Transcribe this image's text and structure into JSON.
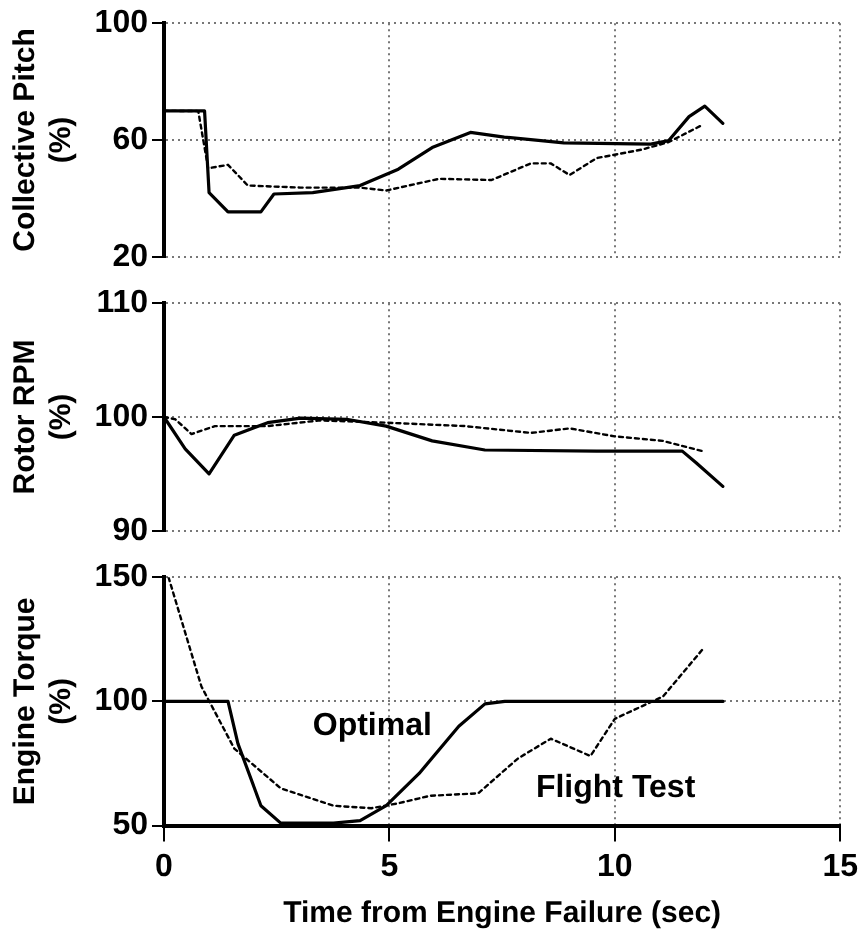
{
  "chart_data": [
    {
      "type": "line",
      "ylabel": "Collective Pitch (%)",
      "xlim": [
        0,
        15
      ],
      "xticks": [
        0,
        5,
        10,
        15
      ],
      "ylim": [
        20,
        100
      ],
      "yticks": [
        20,
        60,
        100
      ],
      "grid": true,
      "tick_labels": "y",
      "marker": "none",
      "series": [
        {
          "color": "#000000",
          "line_style": "solid",
          "x": [
            0,
            0.9,
            1.0,
            1.42,
            2.15,
            2.44,
            3.3,
            4.35,
            5.2,
            5.95,
            6.8,
            7.55,
            8.87,
            10.8,
            11.2,
            11.65,
            12.0,
            12.4
          ],
          "values": [
            70,
            70,
            42,
            35.4,
            35.4,
            41.5,
            42,
            44.4,
            50,
            57.4,
            62.6,
            61,
            59,
            58.6,
            59.8,
            68,
            71.6,
            65.7
          ]
        },
        {
          "color": "#000000",
          "line_style": "dotted",
          "x": [
            0,
            0.76,
            0.98,
            1.42,
            1.86,
            3.03,
            4.35,
            4.93,
            6.1,
            7.27,
            8.14,
            8.58,
            9.0,
            9.6,
            10.6,
            11.2,
            11.95
          ],
          "values": [
            70,
            69.9,
            50.3,
            51.5,
            44.4,
            43.7,
            43.7,
            42.7,
            46.7,
            46.3,
            52,
            52,
            48,
            53.8,
            56.7,
            59.3,
            65.2
          ]
        }
      ]
    },
    {
      "type": "line",
      "ylabel": "Rotor RPM (%)",
      "xlim": [
        0,
        15
      ],
      "xticks": [
        0,
        5,
        10,
        15
      ],
      "ylim": [
        90,
        110
      ],
      "yticks": [
        90,
        100,
        110
      ],
      "grid": true,
      "tick_labels": "y",
      "marker": "none",
      "series": [
        {
          "color": "#000000",
          "line_style": "solid",
          "x": [
            0,
            0.47,
            1.0,
            1.56,
            2.3,
            3.03,
            4.05,
            4.93,
            5.95,
            7.12,
            9.6,
            11.5,
            11.8,
            12.4
          ],
          "values": [
            100,
            97.2,
            95,
            98.4,
            99.5,
            99.9,
            99.8,
            99.2,
            97.9,
            97.1,
            97,
            97,
            96,
            93.9
          ]
        },
        {
          "color": "#000000",
          "line_style": "dotted",
          "x": [
            0,
            0.25,
            0.61,
            1.13,
            2.3,
            3.46,
            4.93,
            6.68,
            8.14,
            9.0,
            10.0,
            11.07,
            11.95
          ],
          "values": [
            100,
            99.8,
            98.5,
            99.2,
            99.2,
            99.7,
            99.5,
            99.2,
            98.6,
            99,
            98.3,
            97.9,
            97
          ]
        }
      ]
    },
    {
      "type": "line",
      "ylabel": "Engine Torque (%)",
      "xlabel": "Time from Engine Failure (sec)",
      "xlim": [
        0,
        15
      ],
      "xticks": [
        0,
        5,
        10,
        15
      ],
      "ylim": [
        50,
        150
      ],
      "yticks": [
        50,
        100,
        150
      ],
      "grid": true,
      "marker": "none",
      "series": [
        {
          "name": "Optimal",
          "color": "#000000",
          "line_style": "solid",
          "x": [
            0,
            1.42,
            1.64,
            2.15,
            2.59,
            3.76,
            4.35,
            4.93,
            5.66,
            6.54,
            7.12,
            7.56,
            12.4
          ],
          "values": [
            100,
            100,
            83,
            58,
            51,
            51,
            52,
            58,
            71,
            90,
            99,
            100,
            100
          ]
        },
        {
          "name": "Flight Test",
          "color": "#000000",
          "line_style": "dotted",
          "x": [
            0.1,
            0.83,
            1.56,
            2.59,
            3.76,
            4.6,
            5.2,
            5.9,
            6.97,
            7.85,
            8.58,
            9.46,
            10.0,
            11.07,
            11.95
          ],
          "values": [
            150,
            106,
            81,
            65,
            58,
            57,
            59,
            62,
            63,
            77,
            85,
            78,
            93,
            102,
            121
          ]
        }
      ]
    }
  ]
}
